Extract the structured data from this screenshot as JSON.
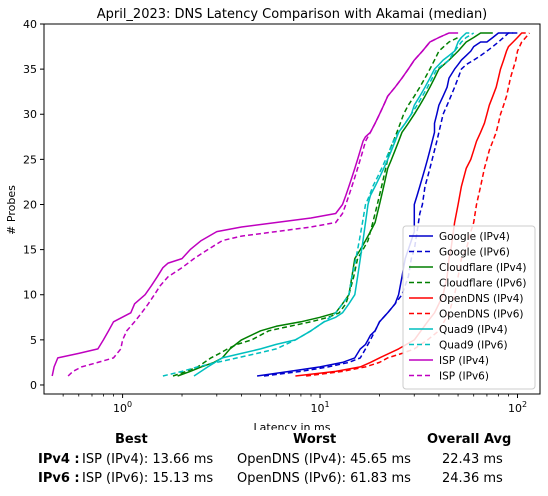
{
  "chart_data": {
    "type": "line",
    "title": "April_2023: DNS Latency Comparison with Akamai (median)",
    "xlabel": "Latency in ms",
    "ylabel": "# Probes",
    "xscale": "log",
    "xlim": [
      0.4,
      130
    ],
    "ylim": [
      -1,
      40
    ],
    "xticks": [
      1,
      10,
      100
    ],
    "xtick_labels": [
      "10^0",
      "10^1",
      "10^2"
    ],
    "yticks": [
      0,
      5,
      10,
      15,
      20,
      25,
      30,
      35,
      40
    ],
    "grid": false,
    "legend_position": "lower-right",
    "series": [
      {
        "name": "Google (IPv4)",
        "color": "#0000cc",
        "dash": "solid",
        "x": [
          4.8,
          7,
          10,
          13,
          15,
          16,
          17,
          17.5,
          18,
          19,
          20,
          22,
          24,
          25,
          26,
          27,
          28,
          29,
          30,
          30,
          31,
          32,
          33,
          34,
          35,
          36,
          37,
          38,
          38,
          39,
          40,
          42,
          44,
          45,
          48,
          50,
          52,
          55,
          58,
          60,
          65,
          70,
          75,
          80,
          85,
          90,
          95
        ],
        "y": [
          1,
          1.5,
          2,
          2.5,
          3,
          4,
          4.5,
          5,
          5.5,
          6,
          7,
          8,
          9,
          10,
          12,
          14,
          15,
          16,
          17,
          20,
          21,
          22,
          23,
          24,
          25,
          26,
          27,
          28,
          29,
          30,
          31,
          32,
          33,
          34,
          35,
          35.5,
          36,
          36.5,
          37,
          37.5,
          38,
          38,
          38.5,
          39,
          39,
          39,
          39
        ]
      },
      {
        "name": "Google (IPv6)",
        "color": "#0000cc",
        "dash": "dashed",
        "x": [
          5.2,
          8,
          11,
          14,
          16,
          17,
          18,
          19,
          20,
          22,
          24,
          26,
          28,
          29,
          30,
          31,
          32,
          33,
          34,
          35,
          36,
          37,
          38,
          39,
          40,
          41,
          42,
          44,
          46,
          48,
          50,
          52,
          55,
          60,
          65,
          70,
          75,
          80,
          85,
          90,
          95,
          100
        ],
        "y": [
          1,
          1.5,
          2,
          2.5,
          3,
          4,
          5,
          6,
          7,
          8,
          9,
          10,
          12,
          14,
          15,
          17,
          19,
          20,
          22,
          23,
          24,
          25,
          26,
          27,
          28,
          29,
          30,
          31,
          32,
          33,
          34,
          35,
          35.5,
          36,
          36.5,
          37,
          37.5,
          38,
          38.5,
          39,
          39,
          39
        ]
      },
      {
        "name": "Cloudflare (IPv4)",
        "color": "#007f00",
        "dash": "solid",
        "x": [
          1.9,
          2.2,
          2.5,
          2.9,
          3.2,
          3.5,
          4,
          5,
          6,
          8,
          10,
          12,
          13,
          14,
          14.5,
          15,
          16,
          17,
          18,
          19,
          20,
          21,
          22,
          23,
          24,
          25,
          26,
          27,
          28,
          30,
          32,
          34,
          36,
          38,
          40,
          45,
          50,
          55,
          60,
          65,
          70,
          75
        ],
        "y": [
          1,
          1.5,
          2,
          2.5,
          3,
          4,
          5,
          6,
          6.5,
          7,
          7.5,
          8,
          9,
          10,
          12,
          14,
          15,
          16,
          17,
          18,
          20,
          22,
          24,
          25,
          26,
          27,
          28,
          28.5,
          29,
          30,
          31,
          32,
          33,
          34,
          35,
          36,
          37,
          38,
          38.5,
          39,
          39,
          39
        ]
      },
      {
        "name": "Cloudflare (IPv6)",
        "color": "#007f00",
        "dash": "dashed",
        "x": [
          1.8,
          2.1,
          2.4,
          2.8,
          3.1,
          3.4,
          3.8,
          4.5,
          5.5,
          7,
          9,
          11,
          12.5,
          13.5,
          14,
          14.8,
          15.5,
          16.5,
          17.5,
          18.5,
          19.5,
          20.5,
          21.5,
          22.5,
          23.5,
          24.5,
          25.5,
          26.5,
          28,
          30,
          32,
          34,
          36,
          38,
          40,
          45,
          50
        ],
        "y": [
          1,
          1.5,
          2,
          3,
          3.5,
          4,
          4.5,
          5,
          6,
          6.5,
          7,
          7.5,
          8,
          9,
          10,
          12,
          14,
          15,
          16,
          18,
          20,
          22,
          24,
          26,
          27,
          28,
          29,
          30,
          31,
          32,
          33,
          34,
          35,
          36,
          37,
          38,
          38.5
        ]
      },
      {
        "name": "OpenDNS (IPv4)",
        "color": "#ff0000",
        "dash": "solid",
        "x": [
          7.5,
          12,
          16,
          18,
          20,
          25,
          30,
          35,
          38,
          40,
          42,
          44,
          45,
          46,
          48,
          50,
          52,
          55,
          58,
          60,
          62,
          65,
          68,
          70,
          72,
          75,
          78,
          80,
          82,
          85,
          88,
          90,
          95,
          100,
          105,
          110
        ],
        "y": [
          1,
          1.5,
          2,
          2.5,
          3,
          4,
          5,
          7,
          8,
          9,
          10,
          12,
          14,
          15,
          18,
          20,
          22,
          24,
          25,
          26,
          27,
          28,
          29,
          30,
          31,
          32,
          33,
          34,
          35,
          36,
          37,
          37.5,
          38,
          38.5,
          39,
          39
        ]
      },
      {
        "name": "OpenDNS (IPv6)",
        "color": "#ff0000",
        "dash": "dashed",
        "x": [
          8.5,
          13,
          17,
          20,
          22,
          26,
          30,
          35,
          40,
          45,
          48,
          50,
          52,
          55,
          58,
          60,
          62,
          65,
          68,
          70,
          72,
          75,
          78,
          80,
          82,
          85,
          88,
          90,
          92,
          95,
          98,
          100,
          105,
          110,
          115
        ],
        "y": [
          1,
          1.5,
          2,
          2.5,
          3,
          3.5,
          4,
          5,
          6,
          8,
          10,
          12,
          14,
          15,
          17,
          18,
          20,
          22,
          24,
          25,
          26,
          27,
          28,
          29,
          30,
          31,
          32,
          33,
          34,
          35,
          36,
          37,
          38,
          38.5,
          39
        ]
      },
      {
        "name": "Quad9 (IPv4)",
        "color": "#00bfbf",
        "dash": "solid",
        "x": [
          2.3,
          2.7,
          3.2,
          4,
          5,
          6,
          7.5,
          9,
          10.5,
          12,
          13,
          14,
          15,
          15.5,
          16,
          16.5,
          17,
          17.5,
          18,
          19,
          20,
          21,
          22,
          23,
          24,
          25,
          27,
          29,
          30,
          32,
          34,
          36,
          38,
          40,
          42,
          45,
          48,
          50,
          52,
          55,
          57
        ],
        "y": [
          1,
          2,
          3,
          3.5,
          4,
          4.5,
          5,
          6,
          7,
          7.5,
          8,
          9,
          10,
          12,
          14,
          16,
          18,
          20,
          21,
          22,
          23,
          24,
          25,
          26,
          27,
          28,
          29,
          30,
          31,
          32,
          33,
          34,
          35,
          35.5,
          36,
          36.5,
          37,
          38,
          38.5,
          39,
          39
        ]
      },
      {
        "name": "Quad9 (IPv6)",
        "color": "#00bfbf",
        "dash": "dashed",
        "x": [
          1.6,
          2.0,
          2.4,
          3.0,
          3.8,
          4.8,
          6.0,
          7.5,
          9.0,
          10.5,
          12.0,
          13.0,
          14.0,
          14.5,
          15.2,
          15.8,
          16.4,
          17.0,
          17.8,
          18.5,
          19.5,
          20.5,
          21.5,
          22.5,
          23.5,
          25,
          27,
          29,
          31,
          33,
          35,
          37,
          39,
          42,
          45,
          48,
          52,
          55,
          60
        ],
        "y": [
          1,
          1.5,
          2,
          2.5,
          3,
          3.5,
          4,
          5,
          6,
          7,
          8,
          9,
          10,
          12,
          14,
          16,
          18,
          20,
          21,
          22,
          23,
          24,
          25,
          26,
          27,
          28,
          29,
          30,
          31,
          32,
          33,
          34,
          35,
          35.5,
          36,
          37,
          38,
          38.5,
          39
        ]
      },
      {
        "name": "ISP (IPv4)",
        "color": "#bf00bf",
        "dash": "solid",
        "x": [
          0.44,
          0.45,
          0.47,
          0.6,
          0.75,
          0.8,
          0.85,
          0.9,
          1.1,
          1.15,
          1.3,
          1.4,
          1.5,
          1.6,
          1.7,
          2.0,
          2.2,
          2.5,
          3.0,
          4.0,
          6.0,
          9.0,
          12.0,
          13.0,
          13.5,
          14.0,
          14.5,
          15.0,
          15.5,
          16.0,
          16.5,
          17.0,
          18.0,
          19.0,
          20.0,
          21.0,
          22.0,
          24.0,
          26.0,
          28.0,
          30.0,
          33.0,
          36.0,
          40.0,
          45.0,
          50.0
        ],
        "y": [
          1,
          2,
          3,
          3.5,
          4,
          5,
          6,
          7,
          8,
          9,
          10,
          11,
          12,
          13,
          13.5,
          14,
          15,
          16,
          17,
          17.5,
          18,
          18.5,
          19,
          20,
          21,
          22,
          23,
          24,
          25,
          26,
          27,
          27.5,
          28,
          29,
          30,
          31,
          32,
          33,
          34,
          35,
          36,
          37,
          38,
          38.5,
          39,
          39
        ]
      },
      {
        "name": "ISP (IPv6)",
        "color": "#bf00bf",
        "dash": "dashed",
        "x": [
          0.53,
          0.56,
          0.62,
          0.75,
          0.9,
          0.98,
          1.0,
          1.05,
          1.15,
          1.25,
          1.35,
          1.45,
          1.55,
          1.7,
          2.0,
          2.3,
          2.7,
          3.2,
          4.0,
          6.0,
          9.0,
          12.0,
          13.0,
          13.5,
          14.0,
          14.5,
          15.0,
          15.5,
          16.0,
          16.5,
          17.0,
          18.0,
          19.0,
          20.0,
          21.0,
          22.0,
          24.0,
          26.0,
          28.0,
          30.0,
          33.0,
          36.0,
          40.0,
          45.0
        ],
        "y": [
          1,
          1.5,
          2,
          2.5,
          3,
          4,
          5,
          6,
          7,
          8,
          9,
          10,
          11,
          12,
          13,
          14,
          15,
          16,
          16.5,
          17,
          17.5,
          18,
          19,
          20,
          21,
          22,
          23,
          24,
          25,
          26,
          27,
          28,
          29,
          30,
          31,
          32,
          33,
          34,
          35,
          36,
          37,
          38,
          38.5,
          39
        ]
      }
    ]
  },
  "summary": {
    "headers": {
      "best": "Best",
      "worst": "Worst",
      "avg": "Overall Avg"
    },
    "rows": [
      {
        "label": "IPv4 :",
        "best": "ISP (IPv4): 13.66 ms",
        "worst": "OpenDNS (IPv4): 45.65 ms",
        "avg": "22.43 ms"
      },
      {
        "label": "IPv6 :",
        "best": "ISP (IPv6): 15.13 ms",
        "worst": "OpenDNS (IPv6): 61.83 ms",
        "avg": "24.36 ms"
      }
    ]
  }
}
